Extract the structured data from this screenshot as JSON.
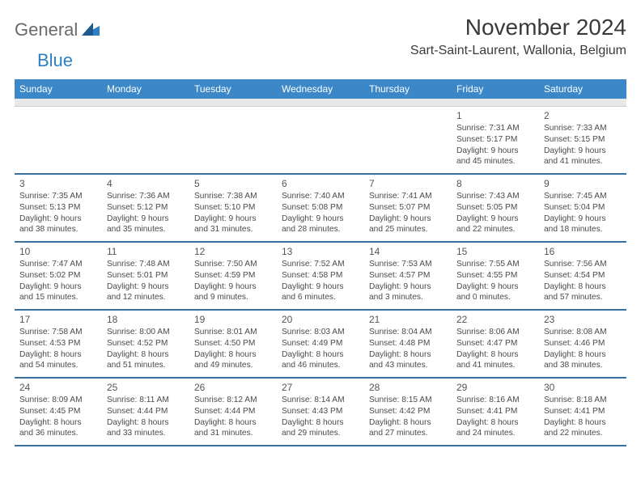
{
  "brand": {
    "word1": "General",
    "word2": "Blue"
  },
  "header": {
    "month_title": "November 2024",
    "location": "Sart-Saint-Laurent, Wallonia, Belgium"
  },
  "colors": {
    "header_bg": "#3b87c8",
    "header_fg": "#ffffff",
    "row_divider": "#3b6f9e",
    "sub_header_bg": "#e8e8e8"
  },
  "weekdays": [
    "Sunday",
    "Monday",
    "Tuesday",
    "Wednesday",
    "Thursday",
    "Friday",
    "Saturday"
  ],
  "weeks": [
    [
      null,
      null,
      null,
      null,
      null,
      {
        "day": "1",
        "sunrise": "Sunrise: 7:31 AM",
        "sunset": "Sunset: 5:17 PM",
        "daylight1": "Daylight: 9 hours",
        "daylight2": "and 45 minutes."
      },
      {
        "day": "2",
        "sunrise": "Sunrise: 7:33 AM",
        "sunset": "Sunset: 5:15 PM",
        "daylight1": "Daylight: 9 hours",
        "daylight2": "and 41 minutes."
      }
    ],
    [
      {
        "day": "3",
        "sunrise": "Sunrise: 7:35 AM",
        "sunset": "Sunset: 5:13 PM",
        "daylight1": "Daylight: 9 hours",
        "daylight2": "and 38 minutes."
      },
      {
        "day": "4",
        "sunrise": "Sunrise: 7:36 AM",
        "sunset": "Sunset: 5:12 PM",
        "daylight1": "Daylight: 9 hours",
        "daylight2": "and 35 minutes."
      },
      {
        "day": "5",
        "sunrise": "Sunrise: 7:38 AM",
        "sunset": "Sunset: 5:10 PM",
        "daylight1": "Daylight: 9 hours",
        "daylight2": "and 31 minutes."
      },
      {
        "day": "6",
        "sunrise": "Sunrise: 7:40 AM",
        "sunset": "Sunset: 5:08 PM",
        "daylight1": "Daylight: 9 hours",
        "daylight2": "and 28 minutes."
      },
      {
        "day": "7",
        "sunrise": "Sunrise: 7:41 AM",
        "sunset": "Sunset: 5:07 PM",
        "daylight1": "Daylight: 9 hours",
        "daylight2": "and 25 minutes."
      },
      {
        "day": "8",
        "sunrise": "Sunrise: 7:43 AM",
        "sunset": "Sunset: 5:05 PM",
        "daylight1": "Daylight: 9 hours",
        "daylight2": "and 22 minutes."
      },
      {
        "day": "9",
        "sunrise": "Sunrise: 7:45 AM",
        "sunset": "Sunset: 5:04 PM",
        "daylight1": "Daylight: 9 hours",
        "daylight2": "and 18 minutes."
      }
    ],
    [
      {
        "day": "10",
        "sunrise": "Sunrise: 7:47 AM",
        "sunset": "Sunset: 5:02 PM",
        "daylight1": "Daylight: 9 hours",
        "daylight2": "and 15 minutes."
      },
      {
        "day": "11",
        "sunrise": "Sunrise: 7:48 AM",
        "sunset": "Sunset: 5:01 PM",
        "daylight1": "Daylight: 9 hours",
        "daylight2": "and 12 minutes."
      },
      {
        "day": "12",
        "sunrise": "Sunrise: 7:50 AM",
        "sunset": "Sunset: 4:59 PM",
        "daylight1": "Daylight: 9 hours",
        "daylight2": "and 9 minutes."
      },
      {
        "day": "13",
        "sunrise": "Sunrise: 7:52 AM",
        "sunset": "Sunset: 4:58 PM",
        "daylight1": "Daylight: 9 hours",
        "daylight2": "and 6 minutes."
      },
      {
        "day": "14",
        "sunrise": "Sunrise: 7:53 AM",
        "sunset": "Sunset: 4:57 PM",
        "daylight1": "Daylight: 9 hours",
        "daylight2": "and 3 minutes."
      },
      {
        "day": "15",
        "sunrise": "Sunrise: 7:55 AM",
        "sunset": "Sunset: 4:55 PM",
        "daylight1": "Daylight: 9 hours",
        "daylight2": "and 0 minutes."
      },
      {
        "day": "16",
        "sunrise": "Sunrise: 7:56 AM",
        "sunset": "Sunset: 4:54 PM",
        "daylight1": "Daylight: 8 hours",
        "daylight2": "and 57 minutes."
      }
    ],
    [
      {
        "day": "17",
        "sunrise": "Sunrise: 7:58 AM",
        "sunset": "Sunset: 4:53 PM",
        "daylight1": "Daylight: 8 hours",
        "daylight2": "and 54 minutes."
      },
      {
        "day": "18",
        "sunrise": "Sunrise: 8:00 AM",
        "sunset": "Sunset: 4:52 PM",
        "daylight1": "Daylight: 8 hours",
        "daylight2": "and 51 minutes."
      },
      {
        "day": "19",
        "sunrise": "Sunrise: 8:01 AM",
        "sunset": "Sunset: 4:50 PM",
        "daylight1": "Daylight: 8 hours",
        "daylight2": "and 49 minutes."
      },
      {
        "day": "20",
        "sunrise": "Sunrise: 8:03 AM",
        "sunset": "Sunset: 4:49 PM",
        "daylight1": "Daylight: 8 hours",
        "daylight2": "and 46 minutes."
      },
      {
        "day": "21",
        "sunrise": "Sunrise: 8:04 AM",
        "sunset": "Sunset: 4:48 PM",
        "daylight1": "Daylight: 8 hours",
        "daylight2": "and 43 minutes."
      },
      {
        "day": "22",
        "sunrise": "Sunrise: 8:06 AM",
        "sunset": "Sunset: 4:47 PM",
        "daylight1": "Daylight: 8 hours",
        "daylight2": "and 41 minutes."
      },
      {
        "day": "23",
        "sunrise": "Sunrise: 8:08 AM",
        "sunset": "Sunset: 4:46 PM",
        "daylight1": "Daylight: 8 hours",
        "daylight2": "and 38 minutes."
      }
    ],
    [
      {
        "day": "24",
        "sunrise": "Sunrise: 8:09 AM",
        "sunset": "Sunset: 4:45 PM",
        "daylight1": "Daylight: 8 hours",
        "daylight2": "and 36 minutes."
      },
      {
        "day": "25",
        "sunrise": "Sunrise: 8:11 AM",
        "sunset": "Sunset: 4:44 PM",
        "daylight1": "Daylight: 8 hours",
        "daylight2": "and 33 minutes."
      },
      {
        "day": "26",
        "sunrise": "Sunrise: 8:12 AM",
        "sunset": "Sunset: 4:44 PM",
        "daylight1": "Daylight: 8 hours",
        "daylight2": "and 31 minutes."
      },
      {
        "day": "27",
        "sunrise": "Sunrise: 8:14 AM",
        "sunset": "Sunset: 4:43 PM",
        "daylight1": "Daylight: 8 hours",
        "daylight2": "and 29 minutes."
      },
      {
        "day": "28",
        "sunrise": "Sunrise: 8:15 AM",
        "sunset": "Sunset: 4:42 PM",
        "daylight1": "Daylight: 8 hours",
        "daylight2": "and 27 minutes."
      },
      {
        "day": "29",
        "sunrise": "Sunrise: 8:16 AM",
        "sunset": "Sunset: 4:41 PM",
        "daylight1": "Daylight: 8 hours",
        "daylight2": "and 24 minutes."
      },
      {
        "day": "30",
        "sunrise": "Sunrise: 8:18 AM",
        "sunset": "Sunset: 4:41 PM",
        "daylight1": "Daylight: 8 hours",
        "daylight2": "and 22 minutes."
      }
    ]
  ]
}
